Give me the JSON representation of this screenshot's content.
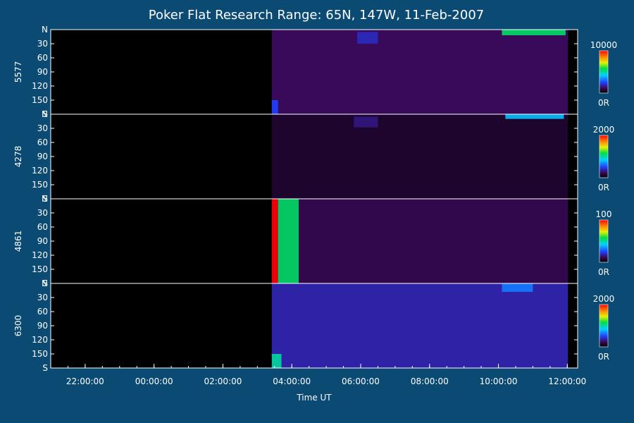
{
  "chart_data": {
    "type": "heatmap",
    "title": "Poker Flat Research Range: 65N, 147W, 11-Feb-2007",
    "xlabel": "Time UT",
    "x_ticks": [
      "22:00:00",
      "00:00:00",
      "02:00:00",
      "04:00:00",
      "06:00:00",
      "08:00:00",
      "10:00:00",
      "12:00:00"
    ],
    "x_range_hours": [
      21.0,
      12.3
    ],
    "data_start_hour": 3.42,
    "data_end_hour": 12.02,
    "y_ticks": [
      "N",
      "30",
      "60",
      "90",
      "120",
      "150",
      "S"
    ],
    "ylim": [
      0,
      180
    ],
    "colorbar_min_label": "0R",
    "panels": [
      {
        "name": "5577",
        "colorbar_max": "10000",
        "background_level": 0.12,
        "features": [
          {
            "t0": 10.1,
            "t1": 11.95,
            "y0": 0,
            "y1": 12,
            "level": 0.55
          },
          {
            "t0": 5.9,
            "t1": 6.5,
            "y0": 5,
            "y1": 30,
            "level": 0.2
          },
          {
            "t0": 3.42,
            "t1": 3.6,
            "y0": 150,
            "y1": 180,
            "level": 0.25
          }
        ]
      },
      {
        "name": "4278",
        "colorbar_max": "2000",
        "background_level": 0.06,
        "features": [
          {
            "t0": 10.2,
            "t1": 11.9,
            "y0": 0,
            "y1": 10,
            "level": 0.4
          },
          {
            "t0": 5.8,
            "t1": 6.5,
            "y0": 5,
            "y1": 28,
            "level": 0.15
          }
        ]
      },
      {
        "name": "4861",
        "colorbar_max": "100",
        "background_level": 0.1,
        "features": [
          {
            "t0": 3.42,
            "t1": 3.6,
            "y0": 0,
            "y1": 180,
            "level": 1.0
          },
          {
            "t0": 3.6,
            "t1": 4.2,
            "y0": 0,
            "y1": 180,
            "level": 0.55
          }
        ]
      },
      {
        "name": "6300",
        "colorbar_max": "2000",
        "background_level": 0.18,
        "features": [
          {
            "t0": 10.1,
            "t1": 11.0,
            "y0": 0,
            "y1": 18,
            "level": 0.32
          },
          {
            "t0": 3.42,
            "t1": 3.7,
            "y0": 150,
            "y1": 180,
            "level": 0.5
          }
        ]
      }
    ]
  }
}
